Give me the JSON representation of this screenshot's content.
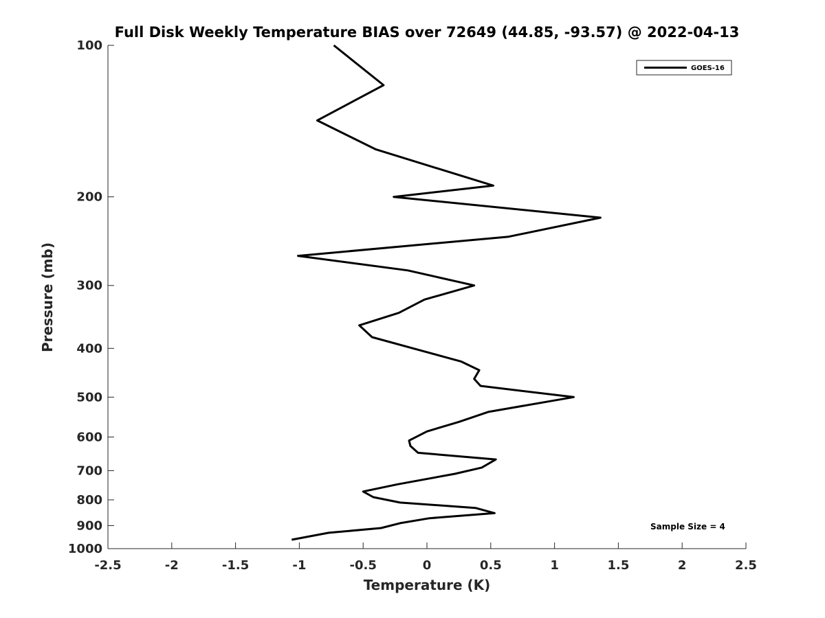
{
  "chart_data": {
    "type": "line",
    "title": "Full Disk Weekly Temperature BIAS over 72649 (44.85, -93.57) @ 2022-04-13",
    "xlabel": "Temperature (K)",
    "ylabel": "Pressure (mb)",
    "xlim": [
      -2.5,
      2.5
    ],
    "ylim": [
      100,
      1000
    ],
    "y_scale": "log",
    "y_reversed": true,
    "grid": false,
    "legend_position": "top-right",
    "x_ticks": [
      "-2.5",
      "-2",
      "-1.5",
      "-1",
      "-0.5",
      "0",
      "0.5",
      "1",
      "1.5",
      "2",
      "2.5"
    ],
    "y_ticks": [
      "100",
      "200",
      "300",
      "400",
      "500",
      "600",
      "700",
      "800",
      "900",
      "1000"
    ],
    "series": [
      {
        "name": "GOES-16",
        "color": "#000000",
        "x": [
          -0.73,
          -0.34,
          -0.86,
          -0.4,
          0.52,
          -0.26,
          1.36,
          0.64,
          -1.01,
          -0.15,
          0.37,
          -0.02,
          -0.22,
          -0.53,
          -0.43,
          0.27,
          0.41,
          0.37,
          0.42,
          1.15,
          0.48,
          0.25,
          0.0,
          -0.14,
          -0.13,
          -0.07,
          0.54,
          0.43,
          0.22,
          -0.23,
          -0.5,
          -0.42,
          -0.21,
          0.38,
          0.53,
          0.02,
          -0.21,
          -0.36,
          -0.77,
          -1.06
        ],
        "y": [
          100,
          120,
          141,
          161,
          190,
          200,
          220,
          240,
          262,
          280,
          300,
          320,
          340,
          360,
          380,
          425,
          442,
          460,
          475,
          500,
          535,
          560,
          585,
          610,
          625,
          645,
          665,
          690,
          710,
          745,
          770,
          790,
          810,
          830,
          850,
          870,
          890,
          910,
          930,
          960
        ]
      }
    ],
    "annotations": [
      "Sample Size = 4"
    ]
  }
}
